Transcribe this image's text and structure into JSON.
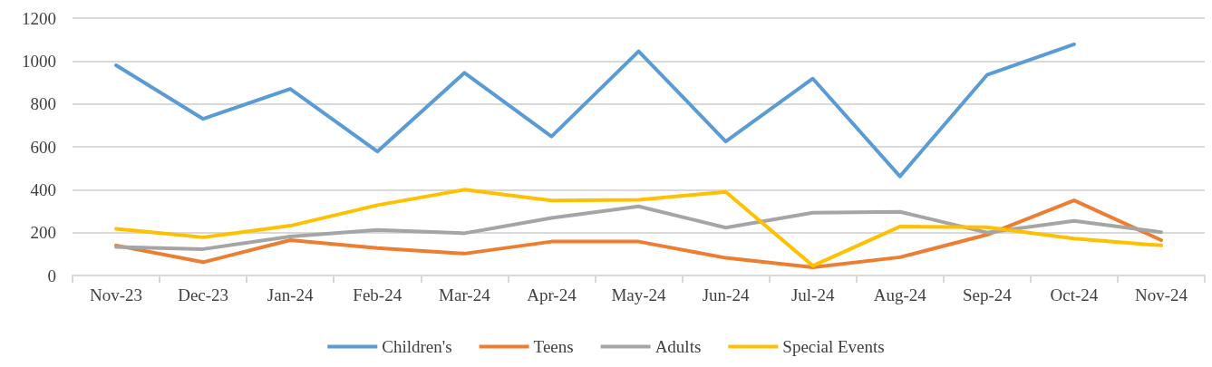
{
  "chart_data": {
    "type": "line",
    "categories": [
      "Nov-23",
      "Dec-23",
      "Jan-24",
      "Feb-24",
      "Mar-24",
      "Apr-24",
      "May-24",
      "Jun-24",
      "Jul-24",
      "Aug-24",
      "Sep-24",
      "Oct-24",
      "Nov-24"
    ],
    "series": [
      {
        "name": "Children's",
        "color": "#5b9bd5",
        "values": [
          980,
          730,
          870,
          578,
          945,
          648,
          1045,
          625,
          918,
          462,
          935,
          1078,
          null
        ]
      },
      {
        "name": "Teens",
        "color": "#ed7d31",
        "values": [
          140,
          62,
          165,
          128,
          102,
          158,
          158,
          82,
          38,
          85,
          190,
          350,
          165
        ]
      },
      {
        "name": "Adults",
        "color": "#a5a5a5",
        "values": [
          133,
          123,
          182,
          212,
          197,
          268,
          322,
          223,
          293,
          297,
          200,
          255,
          202
        ]
      },
      {
        "name": "Special Events",
        "color": "#ffc000",
        "values": [
          218,
          178,
          232,
          328,
          400,
          350,
          353,
          390,
          45,
          228,
          225,
          172,
          140
        ]
      }
    ],
    "ylim": [
      0,
      1200
    ],
    "yticks": [
      0,
      200,
      400,
      600,
      800,
      1000,
      1200
    ],
    "grid": "y",
    "legend": "bottom",
    "marker": "none",
    "line_style": "solid"
  }
}
